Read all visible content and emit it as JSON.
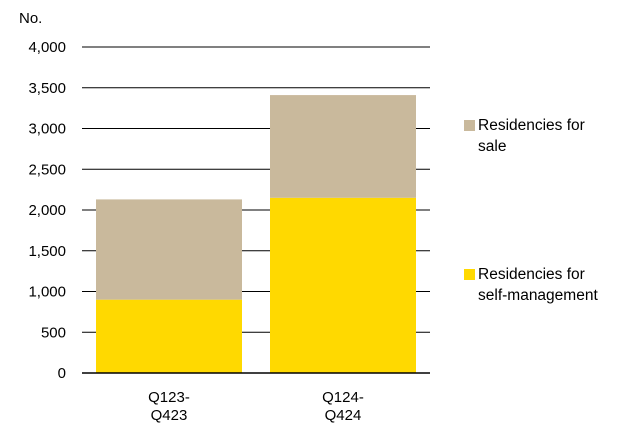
{
  "chart_data": {
    "type": "bar",
    "stacked": true,
    "ylabel": "No.",
    "ylim": [
      0,
      4000
    ],
    "yticks": [
      0,
      500,
      1000,
      1500,
      2000,
      2500,
      3000,
      3500,
      4000
    ],
    "ytick_labels": [
      "0",
      "500",
      "1,000",
      "1,500",
      "2,000",
      "2,500",
      "3,000",
      "3,500",
      "4,000"
    ],
    "categories": [
      [
        "Q123-",
        "Q423"
      ],
      [
        "Q124-",
        "Q424"
      ]
    ],
    "series": [
      {
        "name": [
          "Residencies for",
          "self-management"
        ],
        "values": [
          900,
          2150
        ],
        "color": "#FFD900"
      },
      {
        "name": [
          "Residencies for",
          "sale"
        ],
        "values": [
          1230,
          1260
        ],
        "color": "#C9B99C"
      }
    ],
    "grid": true,
    "legend_position": "right"
  }
}
